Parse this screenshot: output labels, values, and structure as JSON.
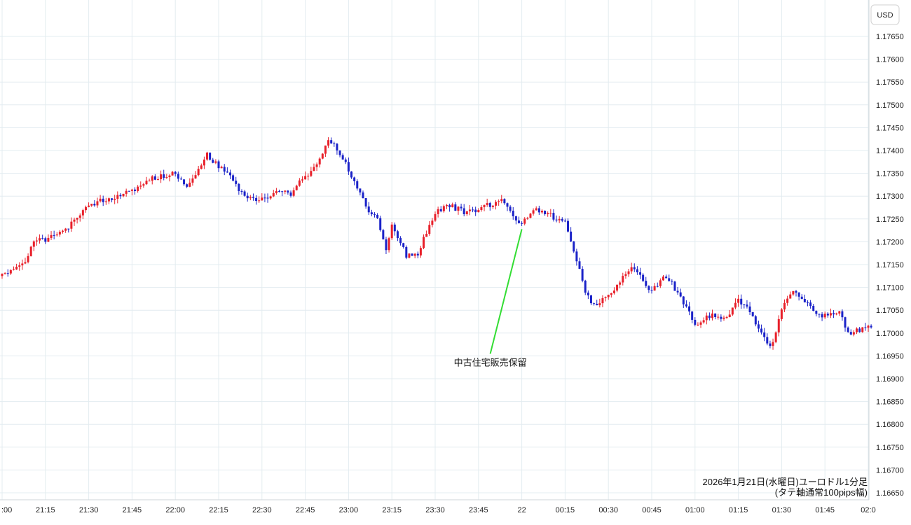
{
  "currency_button": "USD",
  "colors": {
    "up": "#e8202a",
    "down": "#1a22c8",
    "grid": "#e3ecf0",
    "annotation_line": "#33dd33",
    "axis": "#cfd6da"
  },
  "caption": {
    "line1": "2026年1月21日(水曜日)ユーロドル1分足",
    "line2": "(タテ軸通常100pips幅)"
  },
  "chart_data": {
    "type": "candlestick",
    "title": "",
    "x_axis": {
      "ticks": [
        ":00",
        "21:15",
        "21:30",
        "21:45",
        "22:00",
        "22:15",
        "22:30",
        "22:45",
        "23:00",
        "23:15",
        "23:30",
        "23:45",
        "22",
        "00:15",
        "00:30",
        "00:45",
        "01:00",
        "01:15",
        "01:30",
        "01:45",
        "02:0"
      ]
    },
    "y_axis": {
      "range": [
        1.1664,
        1.1769
      ],
      "ticks": [
        "1.17650",
        "1.17600",
        "1.17550",
        "1.17500",
        "1.17450",
        "1.17400",
        "1.17350",
        "1.17300",
        "1.17250",
        "1.17200",
        "1.17150",
        "1.17100",
        "1.17050",
        "1.17000",
        "1.16950",
        "1.16900",
        "1.16850",
        "1.16800",
        "1.16750",
        "1.16700",
        "1.16650"
      ]
    },
    "grid": true,
    "path": [
      [
        "21:00",
        1.1713
      ],
      [
        "21:08",
        1.1715
      ],
      [
        "21:11",
        1.17205
      ],
      [
        "21:15",
        1.17205
      ],
      [
        "21:22",
        1.17225
      ],
      [
        "21:30",
        1.1728
      ],
      [
        "21:37",
        1.17295
      ],
      [
        "21:45",
        1.1731
      ],
      [
        "21:52",
        1.1734
      ],
      [
        "22:00",
        1.1735
      ],
      [
        "22:04",
        1.1732
      ],
      [
        "22:11",
        1.1739
      ],
      [
        "22:18",
        1.1735
      ],
      [
        "22:24",
        1.173
      ],
      [
        "22:29",
        1.1729
      ],
      [
        "22:36",
        1.1731
      ],
      [
        "22:40",
        1.17305
      ],
      [
        "22:44",
        1.1734
      ],
      [
        "22:49",
        1.17365
      ],
      [
        "22:53",
        1.17425
      ],
      [
        "22:57",
        1.17395
      ],
      [
        "23:02",
        1.1733
      ],
      [
        "23:05",
        1.1729
      ],
      [
        "23:07",
        1.1727
      ],
      [
        "23:10",
        1.17255
      ],
      [
        "23:13",
        1.1718
      ],
      [
        "23:15",
        1.1724
      ],
      [
        "23:17",
        1.1721
      ],
      [
        "23:20",
        1.1717
      ],
      [
        "23:24",
        1.17175
      ],
      [
        "23:30",
        1.17265
      ],
      [
        "23:35",
        1.1728
      ],
      [
        "23:40",
        1.17265
      ],
      [
        "23:43",
        1.17265
      ],
      [
        "23:48",
        1.1728
      ],
      [
        "23:54",
        1.1729
      ],
      [
        "23:57",
        1.1725
      ],
      [
        "00:00",
        1.1724
      ],
      [
        "00:04",
        1.1727
      ],
      [
        "00:08",
        1.17265
      ],
      [
        "00:15",
        1.1724
      ],
      [
        "00:18",
        1.1718
      ],
      [
        "00:22",
        1.1709
      ],
      [
        "00:25",
        1.1706
      ],
      [
        "00:30",
        1.17085
      ],
      [
        "00:35",
        1.1712
      ],
      [
        "00:39",
        1.17145
      ],
      [
        "00:44",
        1.1709
      ],
      [
        "00:50",
        1.17125
      ],
      [
        "00:55",
        1.1708
      ],
      [
        "01:00",
        1.1702
      ],
      [
        "01:06",
        1.1704
      ],
      [
        "01:10",
        1.1703
      ],
      [
        "01:15",
        1.1707
      ],
      [
        "01:18",
        1.1706
      ],
      [
        "01:22",
        1.1701
      ],
      [
        "01:25",
        1.16975
      ],
      [
        "01:27",
        1.16975
      ],
      [
        "01:30",
        1.1705
      ],
      [
        "01:34",
        1.17095
      ],
      [
        "01:38",
        1.1707
      ],
      [
        "01:42",
        1.1704
      ],
      [
        "01:47",
        1.1704
      ],
      [
        "01:50",
        1.1705
      ],
      [
        "01:53",
        1.17
      ],
      [
        "01:58",
        1.1701
      ],
      [
        "02:01",
        1.17015
      ]
    ],
    "annotation": {
      "text": "中古住宅販売保留",
      "time": "00:00",
      "price": 1.1724
    }
  }
}
